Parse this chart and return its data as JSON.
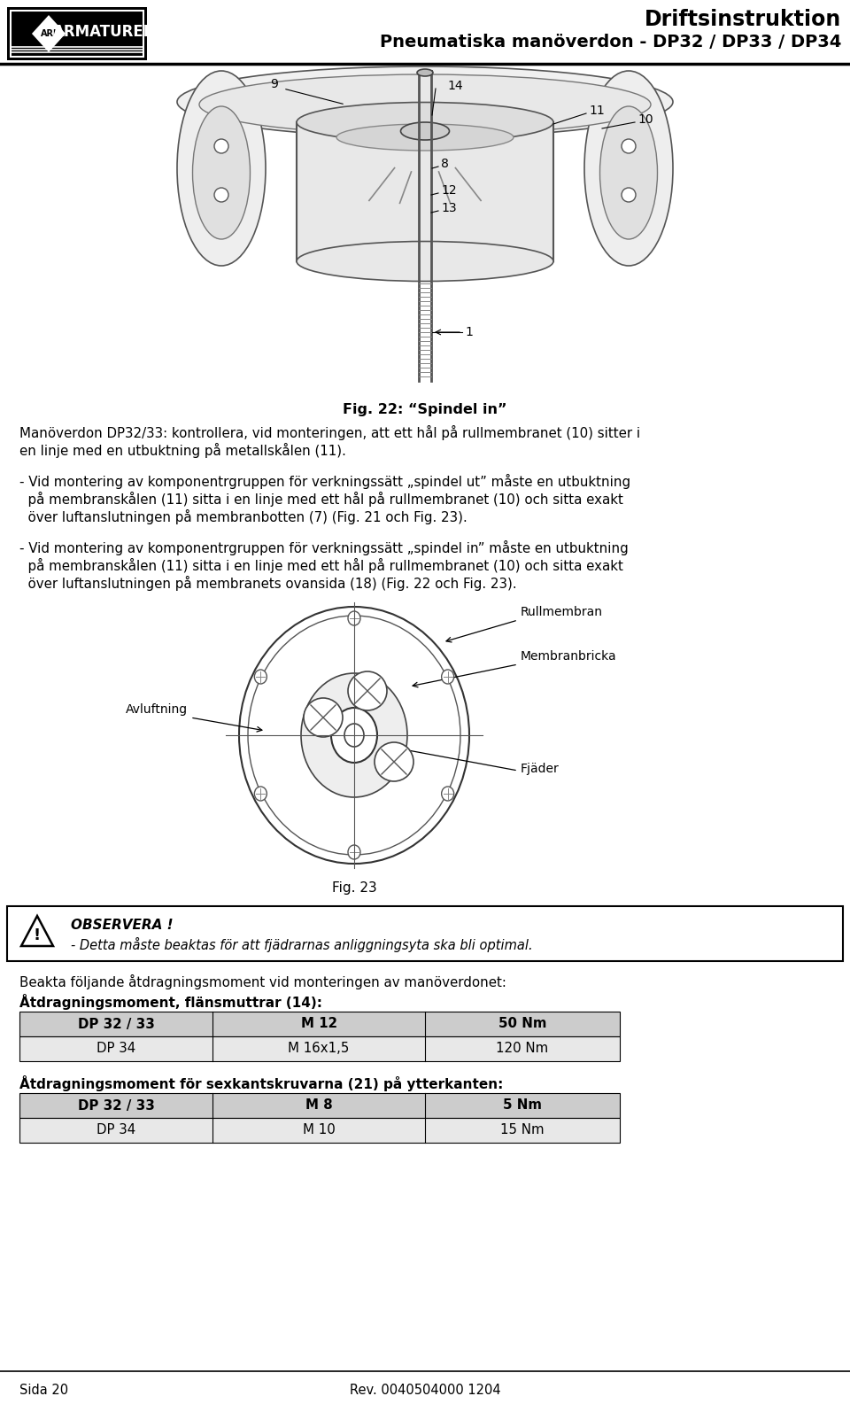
{
  "header_title_line1": "Driftsinstruktion",
  "header_title_line2": "Pneumatiska manöverdon - DP32 / DP33 / DP34",
  "fig22_caption": "Fig. 22: “Spindel in”",
  "para1_line1": "Manöverdon DP32/33: kontrollera, vid monteringen, att ett hål på rullmembranet (10) sitter i",
  "para1_line2": "en linje med en utbuktning på metallskålen (11).",
  "para2_line1": "- Vid montering av komponentrgruppen för verkningssätt „spindel ut” måste en utbuktning",
  "para2_line2": "  på membranskålen (11) sitta i en linje med ett hål på rullmembranet (10) och sitta exakt",
  "para2_line3": "  över luftanslutningen på membranbotten (7) (Fig. 21 och Fig. 23).",
  "para3_line1": "- Vid montering av komponentrgruppen för verkningssätt „spindel in” måste en utbuktning",
  "para3_line2": "  på membranskålen (11) sitta i en linje med ett hål på rullmembranet (10) och sitta exakt",
  "para3_line3": "  över luftanslutningen på membranets ovansida (18) (Fig. 22 och Fig. 23).",
  "fig23_caption": "Fig. 23",
  "label_rullmembran": "Rullmembran",
  "label_membranbricka": "Membranbricka",
  "label_avluftning": "Avluftning",
  "label_fjader": "Fjäder",
  "observera_title": "OBSERVERA !",
  "observera_text": "- Detta måste beaktas för att fjädrarnas anliggningsyta ska bli optimal.",
  "section_title": "Beakta följande åtdragningsmoment vid monteringen av manöverdonet:",
  "table1_title": "Åtdragningsmoment, flänsmuttrar (14):",
  "table1_rows": [
    [
      "DP 32 / 33",
      "M 12",
      "50 Nm"
    ],
    [
      "DP 34",
      "M 16x1,5",
      "120 Nm"
    ]
  ],
  "table2_title": "Åtdragningsmoment för sexkantskruvarna (21) på ytterkanten:",
  "table2_rows": [
    [
      "DP 32 / 33",
      "M 8",
      "5 Nm"
    ],
    [
      "DP 34",
      "M 10",
      "15 Nm"
    ]
  ],
  "footer_left": "Sida 20",
  "footer_right": "Rev. 0040504000 1204"
}
